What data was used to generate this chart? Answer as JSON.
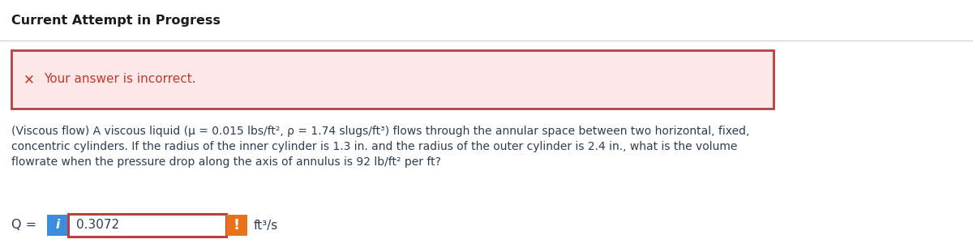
{
  "title": "Current Attempt in Progress",
  "error_box_text": "Your answer is incorrect.",
  "question_line1": "(Viscous flow) A viscous liquid (μ = 0.015 lbs/ft², ρ = 1.74 slugs/ft³) flows through the annular space between two horizontal, fixed,",
  "question_line2": "concentric cylinders. If the radius of the inner cylinder is 1.3 in. and the radius of the outer cylinder is 2.4 in., what is the volume",
  "question_line3": "flowrate when the pressure drop along the axis of annulus is 92 lb/ft² per ft?",
  "q_label": "Q = ",
  "answer_value": "0.3072",
  "unit": "ft³/s",
  "bg_color": "#ffffff",
  "error_box_bg": "#fce8e8",
  "error_box_border": "#b94040",
  "error_icon_color": "#c0392b",
  "error_text_color": "#c0392b",
  "question_text_color": "#2c3e50",
  "title_color": "#1a1a1a",
  "input_box_border": "#b94040",
  "info_btn_color": "#3c8ddb",
  "warn_btn_color": "#e8711a",
  "input_text_color": "#2c3e50",
  "separator_color": "#cccccc"
}
